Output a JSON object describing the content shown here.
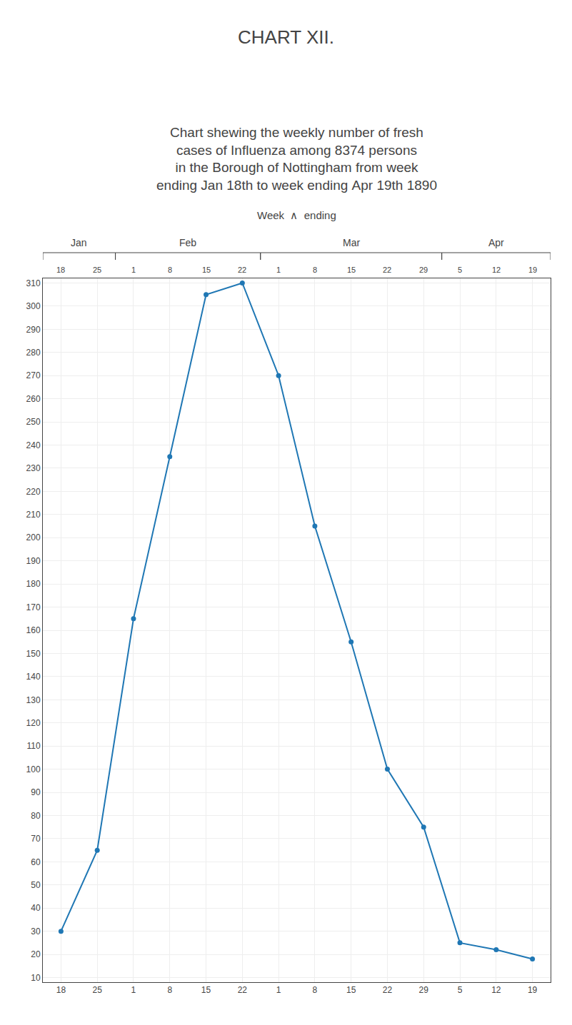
{
  "chart_data": {
    "type": "line",
    "title": "CHART XII.",
    "subtitle": [
      "Chart shewing the weekly number of fresh",
      "cases of Influenza among 8374 persons",
      "in the Borough of Nottingham from week",
      "ending Jan 18th to week ending Apr 19th 1890"
    ],
    "annotations": [
      {
        "text": "Week  ∧  ending"
      },
      {
        "text": "Jan",
        "from": 0,
        "to": 1
      },
      {
        "text": "Feb",
        "from": 2,
        "to": 5
      },
      {
        "text": "Mar",
        "from": 6,
        "to": 10
      },
      {
        "text": "Apr",
        "from": 11,
        "to": 13
      }
    ],
    "categories": [
      "18",
      "25",
      "1",
      "8",
      "15",
      "22",
      "1",
      "8",
      "15",
      "22",
      "29",
      "5",
      "12",
      "19"
    ],
    "values": [
      30,
      65,
      165,
      235,
      305,
      310,
      270,
      205,
      155,
      100,
      75,
      25,
      22,
      18
    ],
    "ylim": [
      8,
      312
    ],
    "yticks": [
      10,
      20,
      30,
      40,
      50,
      60,
      70,
      80,
      90,
      100,
      110,
      120,
      130,
      140,
      150,
      160,
      170,
      180,
      190,
      200,
      210,
      220,
      230,
      240,
      250,
      260,
      270,
      280,
      290,
      300,
      310
    ],
    "grid": true,
    "marker": "circle"
  }
}
